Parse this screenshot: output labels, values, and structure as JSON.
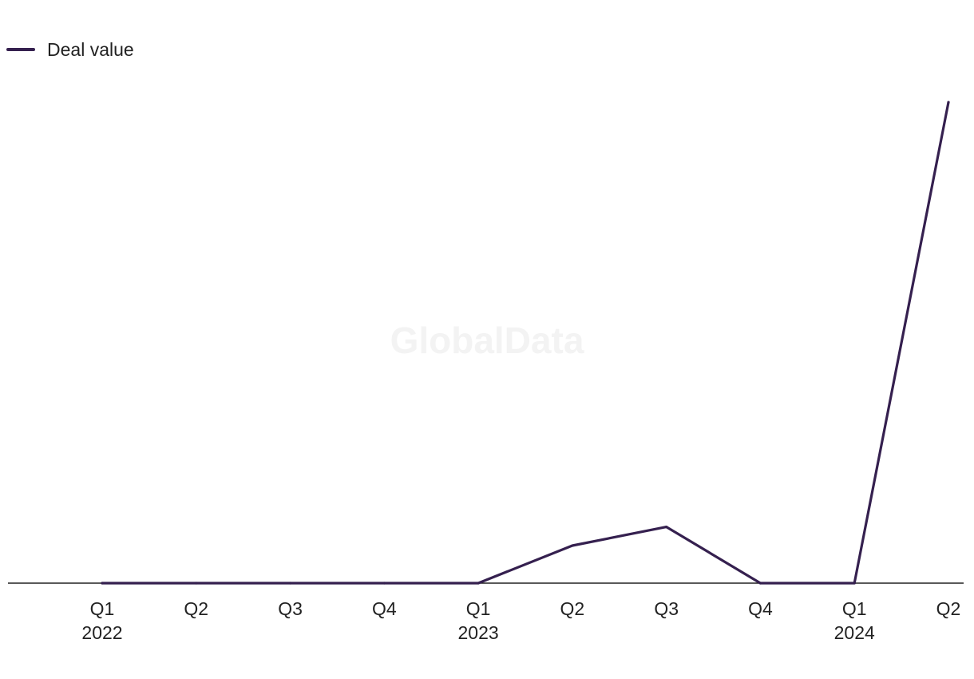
{
  "watermark": "GlobalData",
  "chart_data": {
    "type": "line",
    "title": "",
    "xlabel": "",
    "ylabel": "",
    "categories": [
      "Q1 2022",
      "Q2 2022",
      "Q3 2022",
      "Q4 2022",
      "Q1 2023",
      "Q2 2023",
      "Q3 2023",
      "Q4 2023",
      "Q1 2024",
      "Q2 2024"
    ],
    "tick_labels": [
      {
        "quarter": "Q1",
        "year": "2022"
      },
      {
        "quarter": "Q2",
        "year": ""
      },
      {
        "quarter": "Q3",
        "year": ""
      },
      {
        "quarter": "Q4",
        "year": ""
      },
      {
        "quarter": "Q1",
        "year": "2023"
      },
      {
        "quarter": "Q2",
        "year": ""
      },
      {
        "quarter": "Q3",
        "year": ""
      },
      {
        "quarter": "Q4",
        "year": ""
      },
      {
        "quarter": "Q1",
        "year": "2024"
      },
      {
        "quarter": "Q2",
        "year": ""
      }
    ],
    "series": [
      {
        "name": "Deal value",
        "color": "#35204f",
        "values": [
          0,
          0,
          0,
          0,
          0,
          7.8,
          11.7,
          0,
          0,
          100
        ]
      }
    ],
    "ylim": [
      0,
      100
    ],
    "grid": false,
    "legend": "top-left"
  }
}
